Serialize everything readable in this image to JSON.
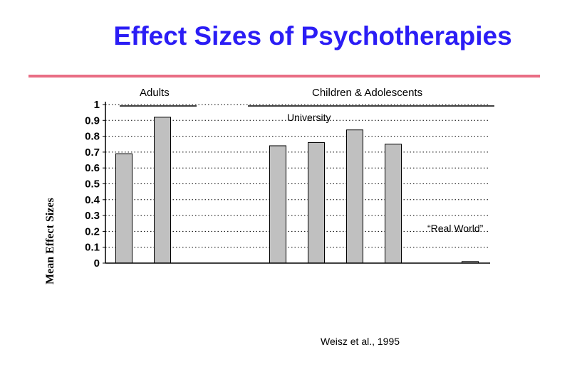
{
  "colors": {
    "title": "#2b1df5",
    "rule": "#e96d84",
    "bar_fill": "#c0c0c0",
    "bar_stroke": "#000000"
  },
  "chart_data": {
    "type": "bar",
    "title": "Effect Sizes of Psychotherapies",
    "xlabel": "",
    "ylabel": "Mean Effect Sizes",
    "ylim": [
      0,
      1
    ],
    "yticks": [
      "0",
      "0.1",
      "0.2",
      "0.3",
      "0.4",
      "0.5",
      "0.6",
      "0.7",
      "0.8",
      "0.9",
      "1"
    ],
    "grid": "horizontal-dotted",
    "values": [
      0.69,
      0.92,
      null,
      null,
      0.74,
      0.76,
      0.84,
      0.75,
      null,
      0.01
    ],
    "group_labels": {
      "adults": "Adults",
      "children": "Children & Adolescents"
    },
    "annotations": {
      "university": "University",
      "real_world": "“Real World”"
    },
    "citation": "Weisz et al., 1995"
  }
}
